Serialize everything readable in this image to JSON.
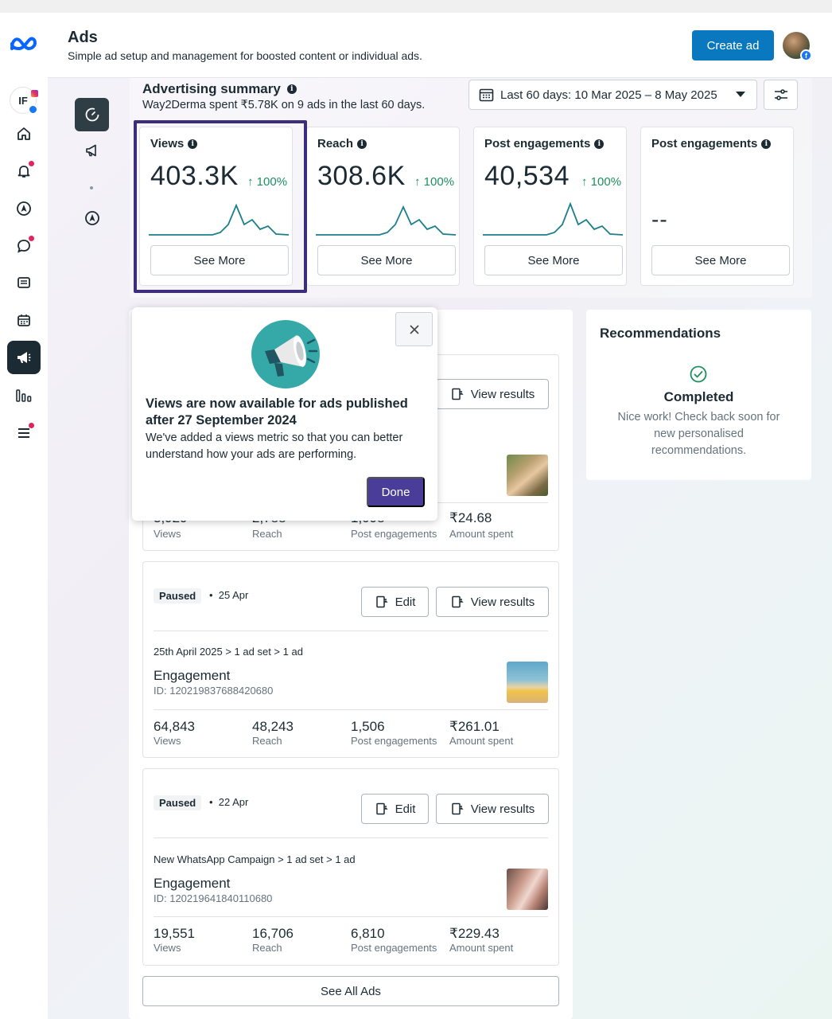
{
  "header": {
    "title": "Ads",
    "subtitle": "Simple ad setup and management for boosted content or individual ads.",
    "create_label": "Create ad"
  },
  "rail": {
    "icons": [
      "meta-logo-icon",
      "profile-icon",
      "home-icon",
      "notifications-icon",
      "compass-icon",
      "messages-icon",
      "pages-icon",
      "calendar-icon",
      "ads-icon",
      "insights-icon",
      "menu-icon"
    ],
    "profile_initials": "IF"
  },
  "summary": {
    "title": "Advertising summary",
    "subtitle": "Way2Derma spent ₹5.78K on 9 ads in the last 60 days.",
    "date_range": "Last 60 days: 10 Mar 2025 – 8 May 2025",
    "cards": [
      {
        "label": "Views",
        "value": "403.3K",
        "change": "100%",
        "see_more": "See More"
      },
      {
        "label": "Reach",
        "value": "308.6K",
        "change": "100%",
        "see_more": "See More"
      },
      {
        "label": "Post engagements",
        "value": "40,534",
        "change": "100%",
        "see_more": "See More"
      },
      {
        "label": "Post engagements",
        "value": "--",
        "change": "",
        "see_more": "See More"
      }
    ]
  },
  "ads": [
    {
      "view_label": "View results",
      "metrics": [
        {
          "value": "3,929",
          "label": "Views"
        },
        {
          "value": "2,788",
          "label": "Reach"
        },
        {
          "value": "1,098",
          "label": "Post engagements"
        },
        {
          "value": "₹24.68",
          "label": "Amount spent"
        }
      ]
    },
    {
      "status": "Paused",
      "date": "25 Apr",
      "edit_label": "Edit",
      "view_label": "View results",
      "crumb": "25th April 2025 > 1 ad set > 1 ad",
      "name": "Engagement",
      "id": "ID: 120219837688420680",
      "metrics": [
        {
          "value": "64,843",
          "label": "Views"
        },
        {
          "value": "48,243",
          "label": "Reach"
        },
        {
          "value": "1,506",
          "label": "Post engagements"
        },
        {
          "value": "₹261.01",
          "label": "Amount spent"
        }
      ]
    },
    {
      "status": "Paused",
      "date": "22 Apr",
      "edit_label": "Edit",
      "view_label": "View results",
      "crumb": "New WhatsApp Campaign > 1 ad set > 1 ad",
      "name": "Engagement",
      "id": "ID: 120219641840110680",
      "metrics": [
        {
          "value": "19,551",
          "label": "Views"
        },
        {
          "value": "16,706",
          "label": "Reach"
        },
        {
          "value": "6,810",
          "label": "Post engagements"
        },
        {
          "value": "₹229.43",
          "label": "Amount spent"
        }
      ]
    }
  ],
  "see_all": "See All Ads",
  "recommendations": {
    "title": "Recommendations",
    "status": "Completed",
    "text": "Nice work! Check back soon for new personalised recommendations."
  },
  "popup": {
    "title": "Views are now available for ads published after 27 September 2024",
    "text": "We've added a views metric so that you can better understand how your ads are performing.",
    "done_label": "Done"
  },
  "colors": {
    "accent": "#0a78be",
    "sparkline": "#1a7f8a",
    "positive": "#1e8f5e",
    "highlight": "#3c2e7a",
    "done_button": "#4a3d9a",
    "notification": "#e0245e"
  }
}
